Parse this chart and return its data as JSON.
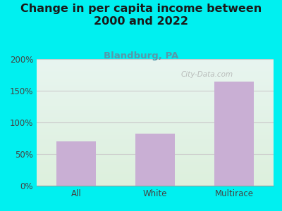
{
  "categories": [
    "All",
    "White",
    "Multirace"
  ],
  "values": [
    70,
    82,
    165
  ],
  "bar_color": "#c9afd4",
  "title": "Change in per capita income between\n2000 and 2022",
  "subtitle": "Blandburg, PA",
  "subtitle_color": "#5599aa",
  "title_color": "#1a1a1a",
  "title_fontsize": 11.5,
  "subtitle_fontsize": 9.5,
  "xlabel": "",
  "ylabel": "",
  "ylim": [
    0,
    200
  ],
  "yticks": [
    0,
    50,
    100,
    150,
    200
  ],
  "ytick_labels": [
    "0%",
    "50%",
    "100%",
    "150%",
    "200%"
  ],
  "background_color": "#00f0f0",
  "plot_bg_gradient_top": "#e8f5f0",
  "plot_bg_gradient_bottom": "#ddf0dd",
  "grid_color": "#cccccc",
  "watermark": "City-Data.com",
  "watermark_color": "#aaaaaa"
}
